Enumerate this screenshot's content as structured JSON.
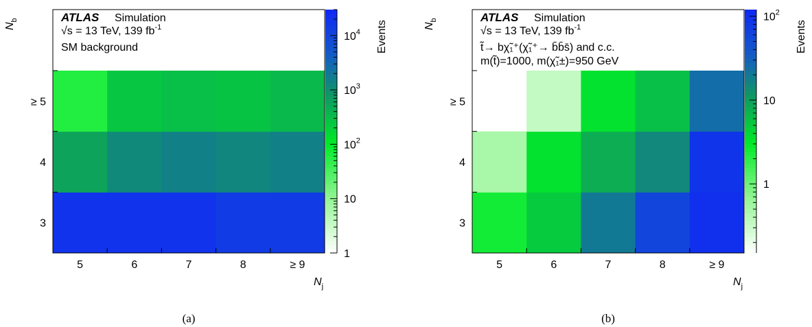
{
  "chart_data": [
    {
      "type": "heatmap",
      "caption": "(a)",
      "xlabel": "N",
      "xlabel_sub": "j",
      "ylabel": "N",
      "ylabel_sub": "b",
      "x_categories": [
        "5",
        "6",
        "7",
        "8",
        "≥ 9"
      ],
      "y_categories": [
        "3",
        "4",
        "≥ 5"
      ],
      "z_label": "Events",
      "z_scale": "log",
      "z_range": [
        1,
        30000
      ],
      "z_ticks": [
        {
          "value": 1,
          "label": "1",
          "sup": ""
        },
        {
          "value": 10,
          "label": "10",
          "sup": ""
        },
        {
          "value": 100,
          "label": "10",
          "sup": "2"
        },
        {
          "value": 1000,
          "label": "10",
          "sup": "3"
        },
        {
          "value": 10000,
          "label": "10",
          "sup": "4"
        }
      ],
      "values": [
        [
          20000,
          20000,
          20000,
          15000,
          15000
        ],
        [
          600,
          1200,
          1500,
          1300,
          1500
        ],
        [
          60,
          250,
          300,
          270,
          350
        ]
      ],
      "legend": {
        "atlas": "ATLAS",
        "simulation": "Simulation",
        "energy": "√s = 13 TeV, 139 fb",
        "energy_sup": "-1",
        "lines": [
          "SM background"
        ]
      }
    },
    {
      "type": "heatmap",
      "caption": "(b)",
      "xlabel": "N",
      "xlabel_sub": "j",
      "ylabel": "N",
      "ylabel_sub": "b",
      "x_categories": [
        "5",
        "6",
        "7",
        "8",
        "≥ 9"
      ],
      "y_categories": [
        "3",
        "4",
        "≥ 5"
      ],
      "z_label": "Events",
      "z_scale": "log",
      "z_range": [
        0.15,
        120
      ],
      "z_ticks": [
        {
          "value": 1,
          "label": "1",
          "sup": ""
        },
        {
          "value": 10,
          "label": "10",
          "sup": ""
        },
        {
          "value": 100,
          "label": "10",
          "sup": "2"
        }
      ],
      "values": [
        [
          2.5,
          5,
          20,
          60,
          100
        ],
        [
          0.5,
          3.5,
          8,
          15,
          90
        ],
        [
          null,
          0.35,
          3.5,
          6,
          25
        ]
      ],
      "legend": {
        "atlas": "ATLAS",
        "simulation": "Simulation",
        "energy": "√s = 13 TeV, 139 fb",
        "energy_sup": "-1",
        "lines": [
          "t̃→ bχ̃₁⁺(χ̃₁⁺→ b̄b̄s̄) and c.c.",
          "m(t̃)=1000, m(χ̃₁±)=950 GeV"
        ]
      }
    }
  ]
}
